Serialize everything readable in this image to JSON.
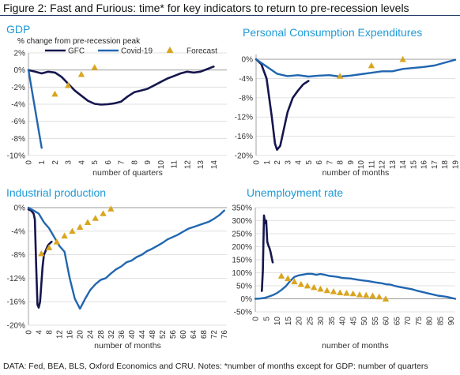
{
  "figure_title": "Figure 2:  Fast and Furious: time* for key indicators to return to pre-recession levels",
  "footnote": "DATA: Fed, BEA, BLS, Oxford Economics and CRU.   Notes: *number of months except for GDP: number of quarters",
  "colors": {
    "gfc": "#16164e",
    "covid": "#2166b0",
    "forecast": "#d9a520",
    "title": "#1f9ad6",
    "grid": "#d9d9d9"
  },
  "legend": {
    "gfc": "GFC",
    "covid": "Covid-19",
    "forecast": "Forecast"
  },
  "chart_data": [
    {
      "type": "line",
      "title": "GDP",
      "subtitle": "% change from pre-recession peak",
      "xlabel": "number of quarters",
      "xlim": [
        0,
        15
      ],
      "ylim": [
        -10,
        2
      ],
      "xticks": [
        0,
        1,
        2,
        3,
        4,
        5,
        6,
        7,
        8,
        9,
        10,
        11,
        12,
        13,
        14
      ],
      "yticks": [
        2,
        0,
        -2,
        -4,
        -6,
        -8,
        -10
      ],
      "ytick_labels": [
        "2%",
        "0%",
        "-2%",
        "-4%",
        "-6%",
        "-8%",
        "-10%"
      ],
      "series": [
        {
          "name": "GFC",
          "x": [
            0,
            0.5,
            1,
            1.5,
            2,
            2.5,
            3,
            3.5,
            4,
            4.5,
            5,
            5.5,
            6,
            6.5,
            7,
            7.5,
            8,
            8.5,
            9,
            9.5,
            10,
            10.5,
            11,
            11.5,
            12,
            12.5,
            13,
            13.5,
            14
          ],
          "y": [
            0,
            -0.2,
            -0.4,
            -0.2,
            -0.3,
            -0.8,
            -1.6,
            -2.4,
            -3.0,
            -3.6,
            -3.95,
            -4.05,
            -4.0,
            -3.9,
            -3.7,
            -3.1,
            -2.6,
            -2.4,
            -2.2,
            -1.8,
            -1.4,
            -1.0,
            -0.7,
            -0.4,
            -0.2,
            -0.3,
            -0.2,
            0.1,
            0.4
          ]
        },
        {
          "name": "Covid-19",
          "x": [
            0,
            1
          ],
          "y": [
            0,
            -9.1
          ]
        },
        {
          "name": "Forecast",
          "x": [
            2,
            3,
            4,
            5
          ],
          "y": [
            -2.8,
            -1.8,
            -0.5,
            0.3
          ]
        }
      ]
    },
    {
      "type": "line",
      "title": "Personal Consumption Expenditures",
      "xlabel": "number of months",
      "xlim": [
        0,
        19
      ],
      "ylim": [
        -20,
        1
      ],
      "xticks": [
        0,
        1,
        2,
        3,
        4,
        5,
        6,
        7,
        8,
        9,
        10,
        11,
        12,
        13,
        14,
        15,
        16,
        17,
        18,
        19
      ],
      "yticks": [
        0,
        -4,
        -8,
        -12,
        -16,
        -20
      ],
      "ytick_labels": [
        "0%",
        "-4%",
        "-8%",
        "-12%",
        "-16%",
        "-20%"
      ],
      "series": [
        {
          "name": "GFC",
          "x": [
            0,
            0.5,
            1,
            1.5,
            1.8,
            2,
            2.3,
            2.6,
            3,
            3.5,
            4,
            4.5,
            5
          ],
          "y": [
            0,
            -1,
            -4,
            -12,
            -17.5,
            -18.8,
            -18,
            -15,
            -11,
            -8,
            -6.5,
            -5.2,
            -4.5
          ]
        },
        {
          "name": "Covid-19",
          "x": [
            0,
            1,
            2,
            3,
            4,
            5,
            6,
            7,
            8,
            9,
            10,
            11,
            12,
            13,
            14,
            15,
            16,
            17,
            18,
            19
          ],
          "y": [
            0,
            -1.5,
            -3,
            -3.5,
            -3.3,
            -3.6,
            -3.4,
            -3.3,
            -3.6,
            -3.4,
            -3.1,
            -2.8,
            -2.5,
            -2.5,
            -2.0,
            -1.8,
            -1.6,
            -1.3,
            -0.7,
            -0.1
          ]
        },
        {
          "name": "Forecast",
          "x": [
            8,
            11,
            14
          ],
          "y": [
            -3.5,
            -1.3,
            0
          ]
        }
      ]
    },
    {
      "type": "line",
      "title": "Industrial production",
      "xlabel": "number of months",
      "xlim": [
        0,
        77
      ],
      "ylim": [
        -20,
        0
      ],
      "xticks": [
        0,
        4,
        8,
        12,
        16,
        20,
        24,
        28,
        32,
        36,
        40,
        44,
        48,
        52,
        56,
        60,
        64,
        68,
        72,
        76
      ],
      "yticks": [
        0,
        -4,
        -8,
        -12,
        -16,
        -20
      ],
      "ytick_labels": [
        "0%",
        "-4%",
        "-8%",
        "-12%",
        "-16%",
        "-20%"
      ],
      "series": [
        {
          "name": "GFC",
          "x": [
            0,
            1,
            2,
            2.5,
            3,
            3.5,
            4,
            4.5,
            5,
            5.5,
            6,
            6.5,
            7,
            7.5,
            8,
            8.5,
            9
          ],
          "y": [
            -0.3,
            -0.5,
            -1,
            -2,
            -10,
            -16.5,
            -17,
            -16,
            -13,
            -10,
            -8,
            -7.5,
            -7,
            -6.5,
            -6.2,
            -6.0,
            -5.8
          ]
        },
        {
          "name": "Covid-19",
          "x": [
            0,
            2,
            4,
            6,
            8,
            10,
            12,
            14,
            16,
            18,
            20,
            22,
            24,
            26,
            28,
            30,
            32,
            34,
            36,
            38,
            40,
            42,
            44,
            46,
            48,
            50,
            52,
            54,
            56,
            58,
            60,
            62,
            64,
            66,
            68,
            70,
            72,
            74,
            76
          ],
          "y": [
            0,
            -0.5,
            -1,
            -2.5,
            -3.5,
            -5,
            -6.5,
            -7.5,
            -12,
            -15.5,
            -17.2,
            -15.5,
            -14,
            -13,
            -12.3,
            -12,
            -11.2,
            -10.5,
            -10,
            -9.3,
            -9.0,
            -8.4,
            -8.0,
            -7.4,
            -7.0,
            -6.5,
            -6.0,
            -5.4,
            -5.0,
            -4.6,
            -4.1,
            -3.6,
            -3.3,
            -3.0,
            -2.7,
            -2.4,
            -1.9,
            -1.3,
            -0.5
          ]
        },
        {
          "name": "Forecast",
          "x": [
            5,
            8,
            11,
            14,
            17,
            20,
            23,
            26,
            29,
            32
          ],
          "y": [
            -7.8,
            -6.8,
            -5.8,
            -4.8,
            -4.0,
            -3.3,
            -2.5,
            -1.8,
            -1.0,
            -0.2
          ]
        }
      ]
    },
    {
      "type": "line",
      "title": "Unemployment rate",
      "xlabel": "number of months",
      "xlim": [
        0,
        92
      ],
      "ylim": [
        -50,
        350
      ],
      "xticks": [
        0,
        5,
        10,
        15,
        20,
        25,
        30,
        35,
        40,
        45,
        50,
        55,
        60,
        65,
        70,
        75,
        80,
        85,
        90
      ],
      "yticks": [
        350,
        300,
        250,
        200,
        150,
        100,
        50,
        0,
        -50
      ],
      "ytick_labels": [
        "350%",
        "300%",
        "250%",
        "200%",
        "150%",
        "100%",
        "50%",
        "0%",
        "-50%"
      ],
      "series": [
        {
          "name": "GFC",
          "x": [
            3,
            3.5,
            4,
            4.5,
            5,
            5.5,
            6,
            6.5,
            7,
            8
          ],
          "y": [
            30,
            110,
            320,
            290,
            300,
            220,
            205,
            195,
            180,
            140
          ]
        },
        {
          "name": "Covid-19",
          "x": [
            0,
            2,
            4,
            6,
            8,
            10,
            12,
            14,
            16,
            18,
            20,
            22,
            24,
            26,
            28,
            30,
            32,
            34,
            36,
            38,
            40,
            42,
            44,
            46,
            48,
            50,
            52,
            54,
            56,
            58,
            60,
            62,
            64,
            66,
            68,
            70,
            72,
            74,
            76,
            78,
            80,
            82,
            84,
            86,
            88,
            90,
            92
          ],
          "y": [
            0,
            1,
            3,
            8,
            14,
            22,
            34,
            48,
            68,
            84,
            90,
            93,
            96,
            96,
            92,
            95,
            92,
            88,
            86,
            84,
            80,
            79,
            78,
            75,
            72,
            70,
            68,
            65,
            62,
            60,
            56,
            55,
            50,
            46,
            43,
            40,
            37,
            32,
            28,
            24,
            20,
            16,
            12,
            10,
            8,
            4,
            0
          ]
        },
        {
          "name": "Forecast",
          "x": [
            12,
            15,
            18,
            21,
            24,
            27,
            30,
            33,
            36,
            39,
            42,
            45,
            48,
            51,
            54,
            57,
            60
          ],
          "y": [
            88,
            78,
            66,
            56,
            50,
            44,
            38,
            32,
            28,
            24,
            22,
            20,
            16,
            14,
            12,
            8,
            0
          ]
        }
      ]
    }
  ]
}
